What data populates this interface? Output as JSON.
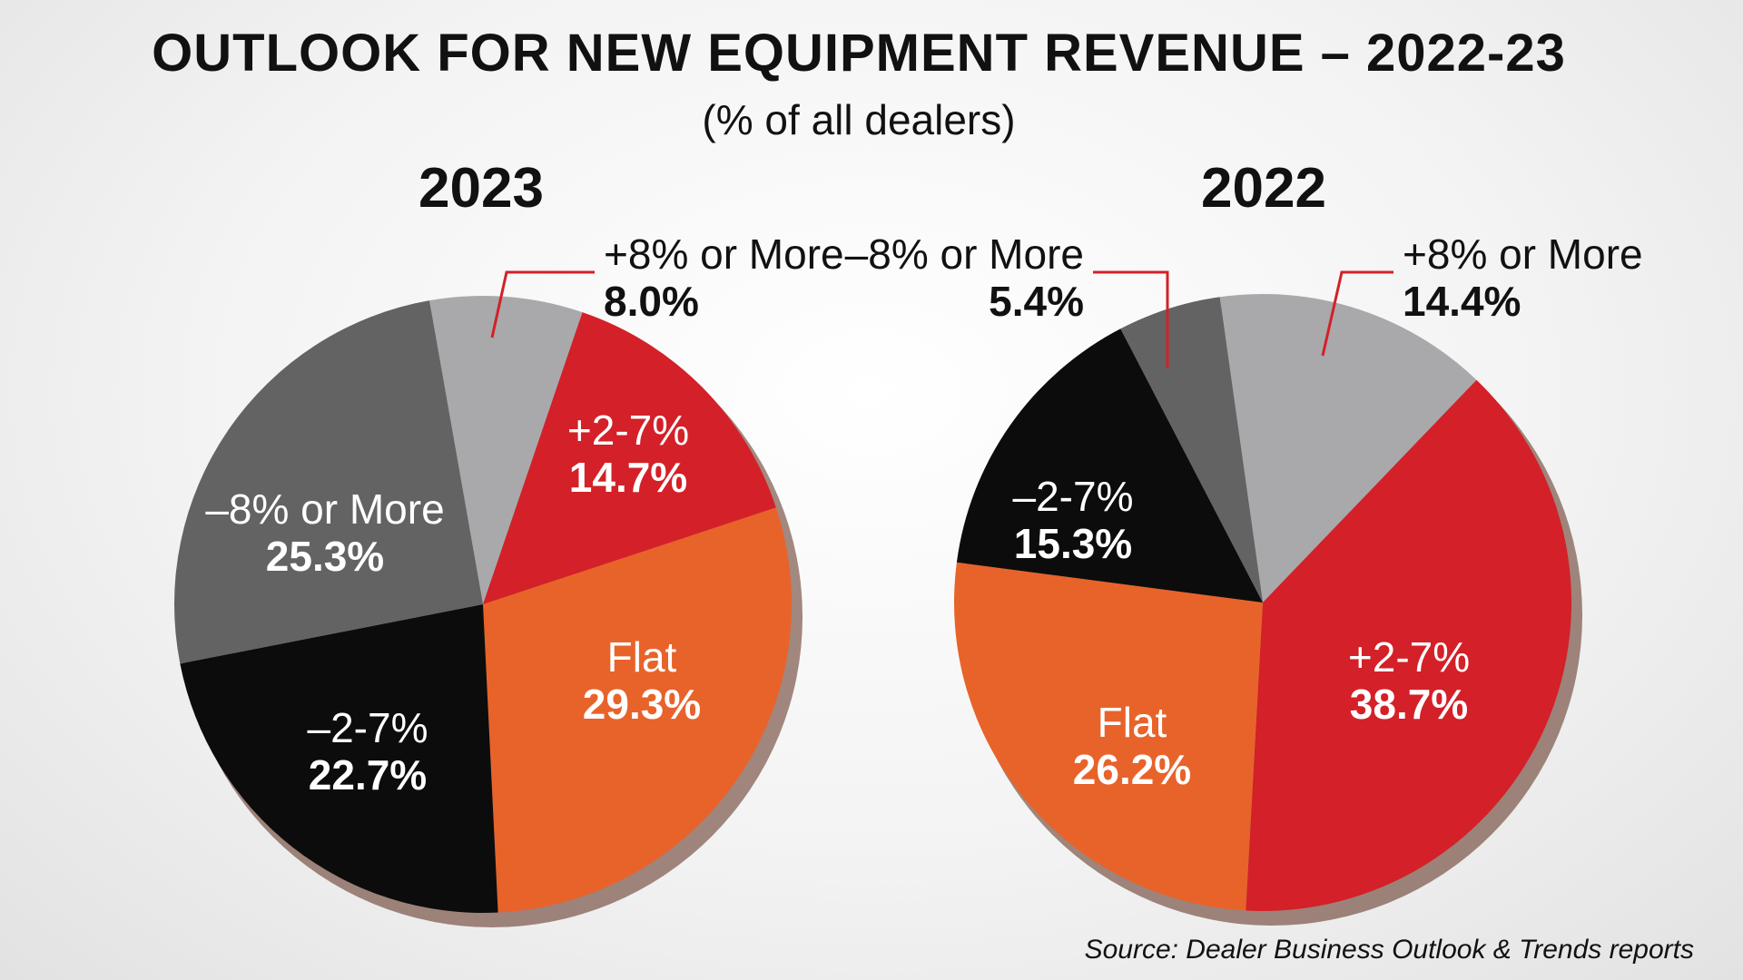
{
  "title": "OUTLOOK FOR NEW EQUIPMENT REVENUE – 2022-23",
  "subtitle": "(% of all dealers)",
  "source": "Source: Dealer Business Outlook & Trends reports",
  "colors": {
    "-8% or More": "#636363",
    "–8% or More": "#636363",
    "+8% or More": "#a9a9ac",
    "+2-7%": "#d42028",
    "Flat": "#e8632a",
    "–2-7%": "#0c0c0c",
    "leader": "#d42028"
  },
  "chart_data": [
    {
      "type": "pie",
      "title": "2023",
      "slices": [
        {
          "label": "+8% or More",
          "value": 8.0,
          "display": "8.0%"
        },
        {
          "label": "+2-7%",
          "value": 14.7,
          "display": "14.7%"
        },
        {
          "label": "Flat",
          "value": 29.3,
          "display": "29.3%"
        },
        {
          "label": "–2-7%",
          "value": 22.7,
          "display": "22.7%"
        },
        {
          "label": "–8% or More",
          "value": 25.3,
          "display": "25.3%"
        }
      ]
    },
    {
      "type": "pie",
      "title": "2022",
      "slices": [
        {
          "label": "+8% or More",
          "value": 14.4,
          "display": "14.4%"
        },
        {
          "label": "+2-7%",
          "value": 38.7,
          "display": "38.7%"
        },
        {
          "label": "Flat",
          "value": 26.2,
          "display": "26.2%"
        },
        {
          "label": "–2-7%",
          "value": 15.3,
          "display": "15.3%"
        },
        {
          "label": "–8% or More",
          "value": 5.4,
          "display": "5.4%"
        }
      ]
    }
  ]
}
